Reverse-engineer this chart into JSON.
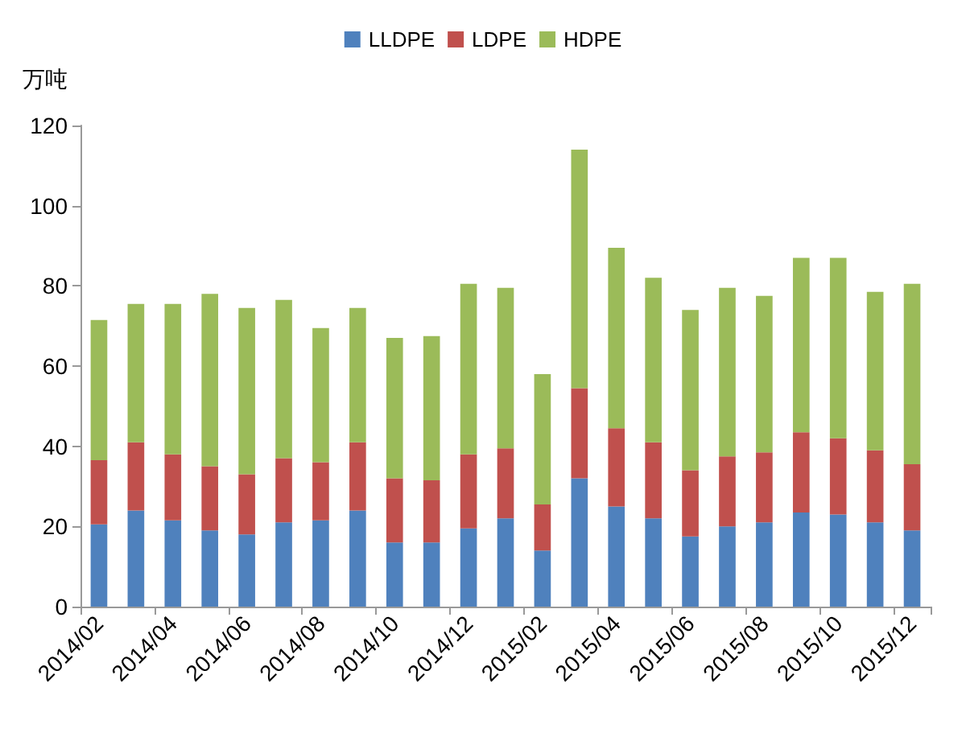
{
  "chart_data": {
    "type": "bar",
    "stacked": true,
    "ylabel": "万吨",
    "categories": [
      "2014/02",
      null,
      "2014/04",
      null,
      "2014/06",
      null,
      "2014/08",
      null,
      "2014/10",
      null,
      "2014/12",
      null,
      "2015/02",
      null,
      "2015/04",
      null,
      "2015/06",
      null,
      "2015/08",
      null,
      "2015/10",
      null,
      "2015/12"
    ],
    "series": [
      {
        "name": "LLDPE",
        "color": "#4f81bd",
        "values": [
          20.5,
          24,
          21.5,
          19,
          18,
          21,
          21.5,
          24,
          16,
          16,
          19.5,
          22,
          14,
          32,
          25,
          22,
          17.5,
          20,
          21,
          23.5,
          23,
          21,
          19
        ]
      },
      {
        "name": "LDPE",
        "color": "#c0504d",
        "values": [
          16,
          17,
          16.5,
          16,
          15,
          16,
          14.5,
          17,
          16,
          15.5,
          18.5,
          17.5,
          11.5,
          22.5,
          19.5,
          19,
          16.5,
          17.5,
          17.5,
          20,
          19,
          18,
          16.5
        ]
      },
      {
        "name": "HDPE",
        "color": "#9bbb59",
        "values": [
          35,
          34.5,
          37.5,
          43,
          41.5,
          39.5,
          33.5,
          33.5,
          35,
          36,
          42.5,
          40,
          32.5,
          59.5,
          45,
          41,
          40,
          42,
          39,
          43.5,
          45,
          39.5,
          45
        ]
      }
    ],
    "ylim": [
      0,
      120
    ],
    "yticks": [
      0,
      20,
      40,
      60,
      80,
      100,
      120
    ],
    "grid": false,
    "legend": "top"
  }
}
